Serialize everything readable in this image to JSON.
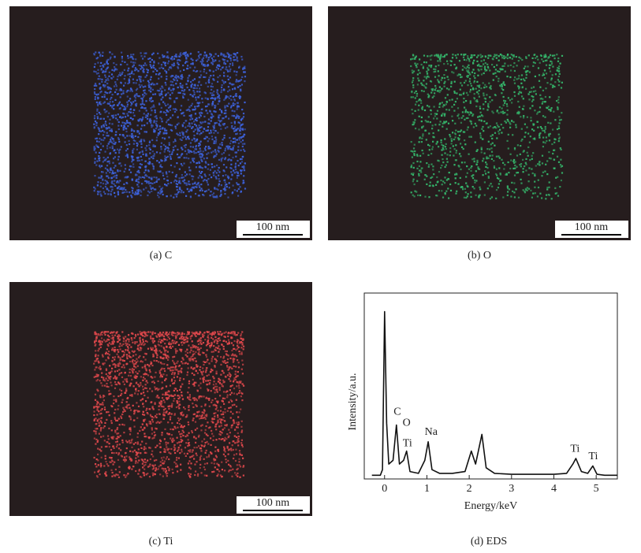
{
  "panels": [
    {
      "caption": "(a) C",
      "scale_bar": "100 nm",
      "color": "#3d62dc"
    },
    {
      "caption": "(b) O",
      "scale_bar": "100 nm",
      "color": "#35b86c"
    },
    {
      "caption": "(c) Ti",
      "scale_bar": "100 nm",
      "color": "#e0484c"
    }
  ],
  "chart_data": {
    "type": "line",
    "caption": "(d) EDS",
    "x_label": "Energy/keV",
    "y_label": "Intensity/a.u.",
    "color": "#111111",
    "x": [
      -0.3,
      -0.1,
      -0.05,
      0,
      0.05,
      0.1,
      0.2,
      0.28,
      0.35,
      0.45,
      0.52,
      0.6,
      0.8,
      0.95,
      1.03,
      1.12,
      1.3,
      1.6,
      1.9,
      2.05,
      2.15,
      2.3,
      2.4,
      2.6,
      3,
      3.5,
      4,
      4.3,
      4.45,
      4.52,
      4.65,
      4.8,
      4.92,
      5.02,
      5.2,
      5.5
    ],
    "values": [
      2,
      2,
      5,
      90,
      30,
      8,
      10,
      29,
      8,
      10,
      15,
      4,
      3,
      10,
      20,
      5,
      3,
      3,
      4,
      15,
      8,
      24,
      6,
      3,
      2.5,
      2.5,
      2.5,
      3,
      8,
      11,
      4,
      3,
      7,
      2.5,
      2,
      2
    ],
    "xlim": [
      -0.48,
      5.5
    ],
    "xticks": [
      0,
      1,
      2,
      3,
      4,
      5
    ],
    "ylim": [
      0,
      100
    ],
    "annotations": [
      {
        "text": "C",
        "x": 0.3,
        "y": 36
      },
      {
        "text": "O",
        "x": 0.52,
        "y": 30
      },
      {
        "text": "Ti",
        "x": 0.54,
        "y": 19
      },
      {
        "text": "Na",
        "x": 1.1,
        "y": 25
      },
      {
        "text": "Ti",
        "x": 4.5,
        "y": 16
      },
      {
        "text": "Ti",
        "x": 4.93,
        "y": 12
      }
    ]
  }
}
